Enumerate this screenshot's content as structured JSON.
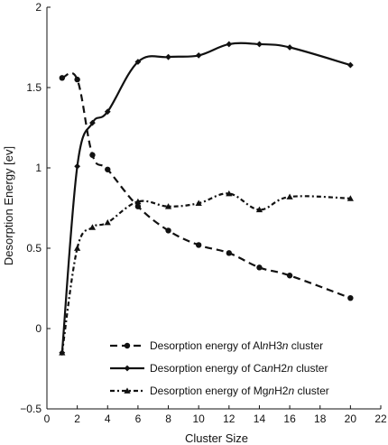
{
  "chart_data": {
    "type": "line",
    "title": "",
    "xlabel": "Cluster Size",
    "ylabel": "Desorption Energy [ev]",
    "xlim": [
      0,
      22
    ],
    "ylim": [
      -0.5,
      2
    ],
    "xticks": [
      "0",
      "2",
      "4",
      "6",
      "8",
      "10",
      "12",
      "14",
      "16",
      "18",
      "20",
      "22"
    ],
    "yticks": [
      "−0.5",
      "0",
      "0.5",
      "1",
      "1.5",
      "2"
    ],
    "grid": false,
    "legend_position": "bottom-right",
    "series": [
      {
        "name": "Desorption energy of AlnH3n cluster",
        "name_parts": [
          "Desorption energy of Al",
          "n",
          "H3",
          "n",
          " cluster"
        ],
        "style": "dashed",
        "marker": "circle",
        "color": "#111111",
        "x": [
          1,
          2,
          3,
          4,
          6,
          8,
          10,
          12,
          14,
          16,
          20
        ],
        "y": [
          1.56,
          1.55,
          1.08,
          0.99,
          0.76,
          0.61,
          0.52,
          0.47,
          0.38,
          0.33,
          0.19
        ]
      },
      {
        "name": "Desorption energy of CanH2n cluster",
        "name_parts": [
          "Desorption energy of Ca",
          "n",
          "H2",
          "n",
          " cluster"
        ],
        "style": "solid",
        "marker": "diamond",
        "color": "#111111",
        "x": [
          1,
          2,
          3,
          4,
          6,
          8,
          10,
          12,
          14,
          16,
          20
        ],
        "y": [
          -0.15,
          1.01,
          1.28,
          1.35,
          1.66,
          1.69,
          1.7,
          1.77,
          1.77,
          1.75,
          1.64
        ]
      },
      {
        "name": "Desorption energy of MgnH2n cluster",
        "name_parts": [
          "Desorption energy of Mg",
          "n",
          "H2",
          "n",
          " cluster"
        ],
        "style": "dash-dot",
        "marker": "triangle",
        "color": "#111111",
        "x": [
          1,
          2,
          3,
          4,
          6,
          8,
          10,
          12,
          14,
          16,
          20
        ],
        "y": [
          -0.15,
          0.5,
          0.63,
          0.66,
          0.79,
          0.76,
          0.78,
          0.84,
          0.74,
          0.82,
          0.81
        ]
      }
    ]
  }
}
